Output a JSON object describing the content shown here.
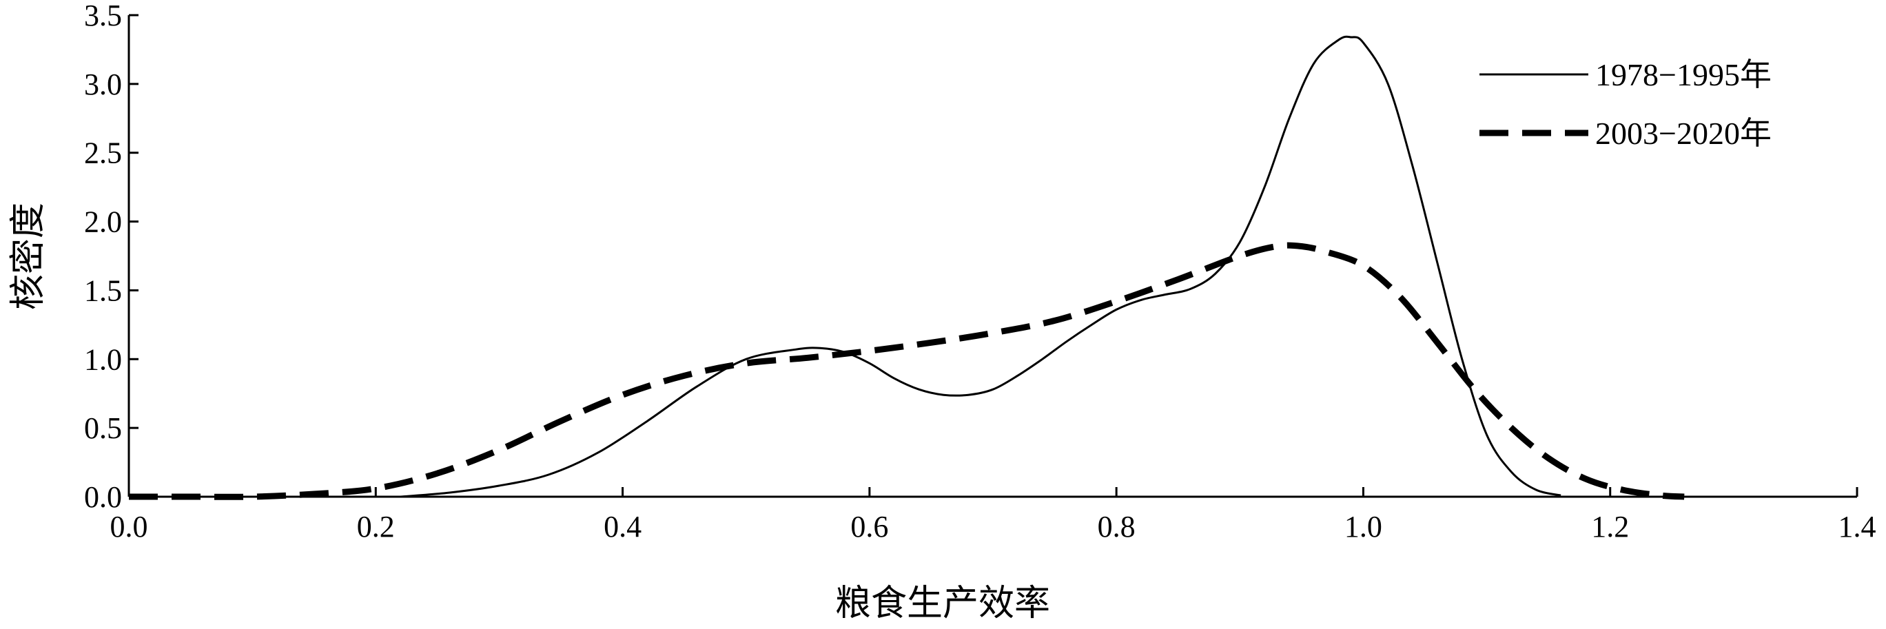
{
  "chart_data": {
    "type": "line",
    "title": "",
    "xlabel": "粮食生产效率",
    "ylabel": "核密度",
    "xlim": [
      0.0,
      1.4
    ],
    "ylim": [
      0.0,
      3.5
    ],
    "xticks": [
      "0.0",
      "0.2",
      "0.4",
      "0.6",
      "0.8",
      "1.0",
      "1.2",
      "1.4"
    ],
    "yticks": [
      "0.0",
      "0.5",
      "1.0",
      "1.5",
      "2.0",
      "2.5",
      "3.0",
      "3.5"
    ],
    "grid": false,
    "legend_position": "top-right",
    "series": [
      {
        "name": "1978−1995年",
        "style": "solid",
        "color": "#000000",
        "x": [
          0.22,
          0.26,
          0.3,
          0.34,
          0.38,
          0.42,
          0.46,
          0.5,
          0.54,
          0.56,
          0.58,
          0.6,
          0.62,
          0.64,
          0.66,
          0.68,
          0.7,
          0.72,
          0.74,
          0.76,
          0.78,
          0.8,
          0.82,
          0.84,
          0.86,
          0.88,
          0.9,
          0.92,
          0.94,
          0.96,
          0.98,
          0.99,
          1.0,
          1.02,
          1.04,
          1.06,
          1.08,
          1.1,
          1.12,
          1.14,
          1.16
        ],
        "y": [
          0.0,
          0.03,
          0.08,
          0.16,
          0.32,
          0.55,
          0.8,
          1.0,
          1.07,
          1.08,
          1.05,
          0.97,
          0.86,
          0.78,
          0.74,
          0.74,
          0.78,
          0.88,
          1.0,
          1.13,
          1.25,
          1.36,
          1.43,
          1.47,
          1.51,
          1.62,
          1.85,
          2.25,
          2.75,
          3.15,
          3.32,
          3.34,
          3.3,
          3.0,
          2.4,
          1.7,
          1.0,
          0.45,
          0.18,
          0.05,
          0.01
        ]
      },
      {
        "name": "2003−2020年",
        "style": "dashed",
        "color": "#000000",
        "x": [
          0.0,
          0.05,
          0.1,
          0.15,
          0.2,
          0.25,
          0.3,
          0.35,
          0.4,
          0.45,
          0.5,
          0.55,
          0.6,
          0.65,
          0.7,
          0.75,
          0.8,
          0.85,
          0.9,
          0.93,
          0.95,
          0.97,
          1.0,
          1.03,
          1.06,
          1.09,
          1.12,
          1.15,
          1.18,
          1.21,
          1.24,
          1.26
        ],
        "y": [
          0.0,
          0.0,
          0.0,
          0.02,
          0.06,
          0.17,
          0.34,
          0.55,
          0.74,
          0.88,
          0.97,
          1.01,
          1.06,
          1.12,
          1.19,
          1.28,
          1.42,
          1.58,
          1.75,
          1.82,
          1.82,
          1.78,
          1.68,
          1.45,
          1.12,
          0.78,
          0.5,
          0.28,
          0.13,
          0.05,
          0.01,
          0.0
        ]
      }
    ]
  }
}
